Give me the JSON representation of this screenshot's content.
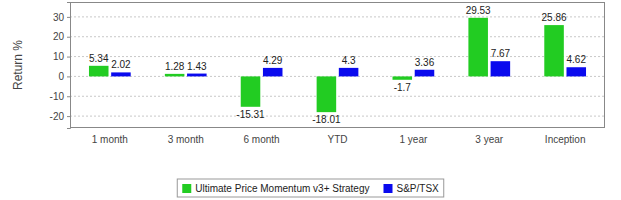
{
  "chart_data": {
    "type": "bar",
    "ylabel": "Return %",
    "categories": [
      "1 month",
      "3 month",
      "6 month",
      "YTD",
      "1 year",
      "3 year",
      "Inception"
    ],
    "series": [
      {
        "name": "Ultimate Price Momentum v3+ Strategy",
        "color": "#22cc22",
        "values": [
          5.34,
          1.28,
          -15.31,
          -18.01,
          -1.7,
          29.53,
          25.86
        ]
      },
      {
        "name": "S&P/TSX",
        "color": "#0a0aee",
        "values": [
          2.02,
          1.43,
          4.29,
          4.3,
          3.36,
          7.67,
          4.62
        ]
      }
    ],
    "ylim": [
      -26,
      37.5
    ],
    "yticks": [
      -20,
      -10,
      0,
      10,
      20,
      30
    ],
    "grid": true,
    "legend": "bottom",
    "data_labels": true
  }
}
